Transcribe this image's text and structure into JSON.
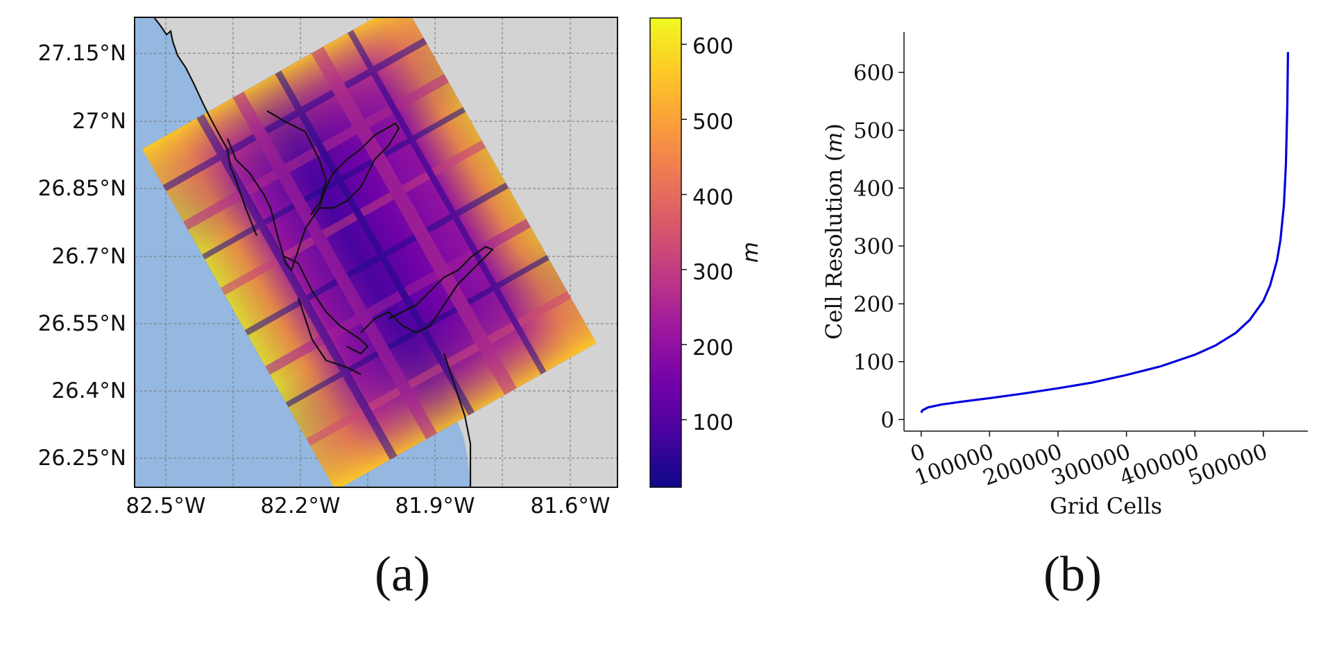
{
  "colors": {
    "water": "#94b8e0",
    "land": "#d3d3d3",
    "line_series": "#0000dd",
    "plasma_stops": [
      "#0d0887",
      "#46039f",
      "#7201a8",
      "#9c179e",
      "#bd3786",
      "#d8576b",
      "#ed7953",
      "#fb9f3a",
      "#fdca26",
      "#f0f921"
    ]
  },
  "panel_a": {
    "caption": "(a)",
    "lat_ticks": [
      "27.15°N",
      "27°N",
      "26.85°N",
      "26.7°N",
      "26.55°N",
      "26.4°N",
      "26.25°N"
    ],
    "lon_ticks": [
      "82.5°W",
      "82.2°W",
      "81.9°W",
      "81.6°W"
    ],
    "colorbar": {
      "label": "m",
      "ticks": [
        "600",
        "500",
        "400",
        "300",
        "200",
        "100"
      ],
      "range": [
        10,
        635
      ],
      "colormap": "plasma"
    }
  },
  "panel_b": {
    "caption": "(b)",
    "chart_data": {
      "type": "line",
      "xlabel": "Grid Cells",
      "ylabel": "Cell Resolution (m)",
      "x_ticks": [
        "0",
        "100000",
        "200000",
        "300000",
        "400000",
        "500000"
      ],
      "y_ticks": [
        "0",
        "100",
        "200",
        "300",
        "400",
        "500",
        "600"
      ],
      "xlim": [
        -25000,
        565000
      ],
      "ylim": [
        -20,
        670
      ],
      "grid": false,
      "series": [
        {
          "x": [
            0,
            2000,
            10000,
            30000,
            60000,
            100000,
            150000,
            200000,
            250000,
            300000,
            350000,
            400000,
            430000,
            460000,
            480000,
            500000,
            510000,
            520000,
            525000,
            530000,
            533000,
            535000,
            536000
          ],
          "values": [
            12,
            16,
            21,
            26,
            31,
            37,
            45,
            54,
            64,
            77,
            92,
            112,
            128,
            150,
            172,
            205,
            232,
            275,
            310,
            370,
            440,
            540,
            635
          ]
        }
      ]
    }
  }
}
